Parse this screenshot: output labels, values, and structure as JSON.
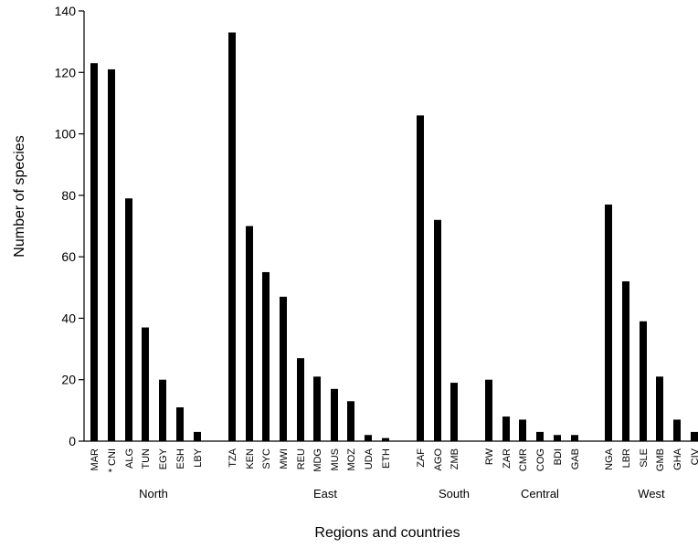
{
  "chart_data": {
    "type": "bar",
    "xlabel": "Regions and countries",
    "ylabel": "Number of species",
    "ylim": [
      0,
      140
    ],
    "yticks": [
      "0",
      "20",
      "40",
      "60",
      "80",
      "100",
      "120",
      "140"
    ],
    "grid": false,
    "legend": "none",
    "bar_color": "#000000",
    "groups": [
      {
        "name": "North",
        "categories": [
          "MAR",
          "* CNI",
          "ALG",
          "TUN",
          "EGY",
          "ESH",
          "LBY"
        ],
        "values": [
          123,
          121,
          79,
          37,
          20,
          11,
          3
        ]
      },
      {
        "name": "East",
        "categories": [
          "TZA",
          "KEN",
          "SYC",
          "MWI",
          "REU",
          "MDG",
          "MUS",
          "MOZ",
          "UDA",
          "ETH"
        ],
        "values": [
          133,
          70,
          55,
          47,
          27,
          21,
          17,
          13,
          2,
          1
        ]
      },
      {
        "name": "South",
        "categories": [
          "ZAF",
          "AGO",
          "ZMB"
        ],
        "values": [
          106,
          72,
          19
        ]
      },
      {
        "name": "Central",
        "categories": [
          "RW",
          "ZAR",
          "CMR",
          "COG",
          "BDI",
          "GAB"
        ],
        "values": [
          20,
          8,
          7,
          3,
          2,
          2
        ]
      },
      {
        "name": "West",
        "categories": [
          "NGA",
          "LBR",
          "SLE",
          "GMB",
          "GHA",
          "CIV"
        ],
        "values": [
          77,
          52,
          39,
          21,
          7,
          3
        ]
      }
    ]
  }
}
